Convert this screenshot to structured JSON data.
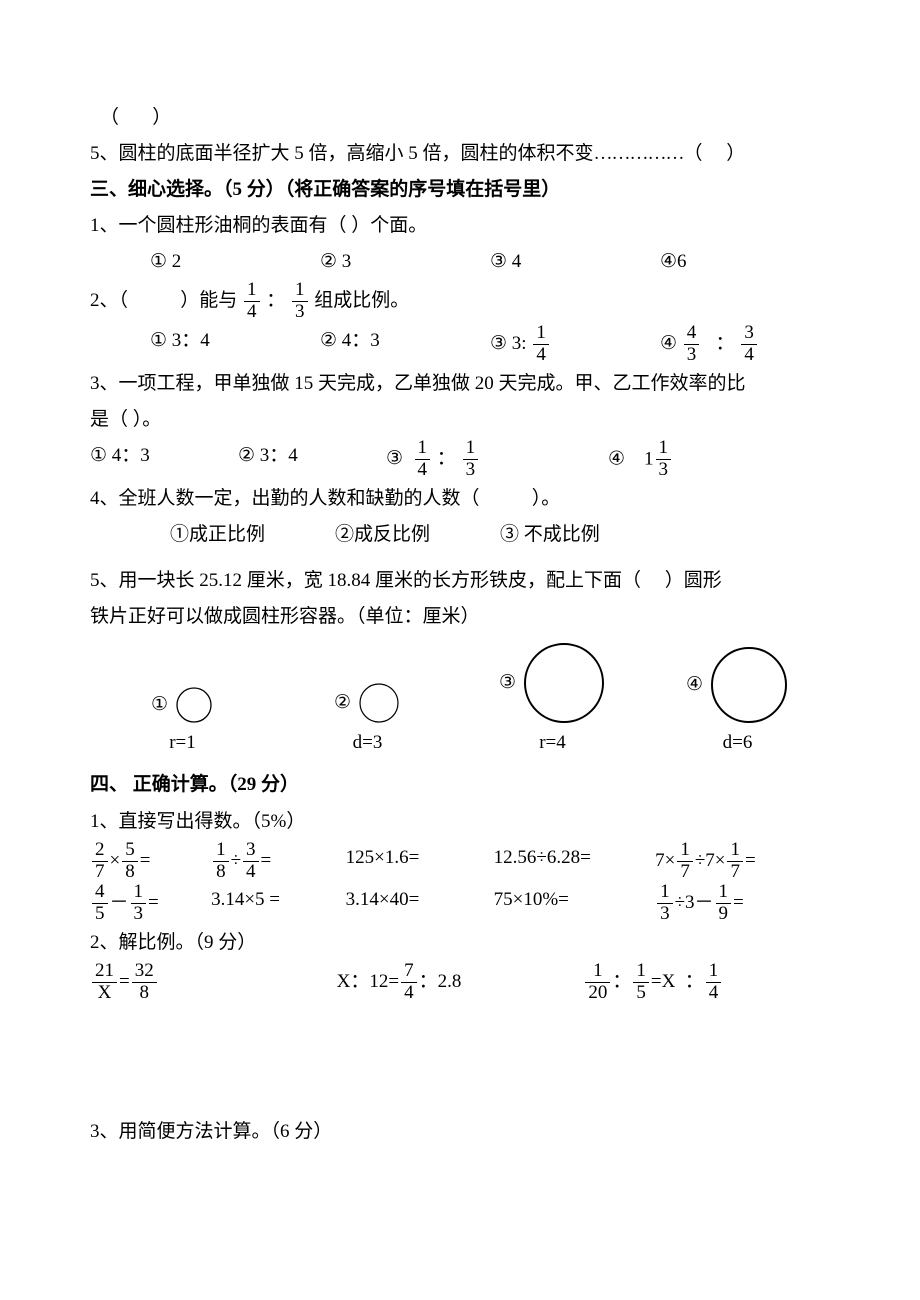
{
  "q_top_paren": "（       ）",
  "q_cylinder": {
    "num": "5",
    "text1": "、圆柱的底面半径扩大 5 倍，高缩小 5 倍，圆柱的体积不变",
    "dots": "……………",
    "paren": "（     ）"
  },
  "sec3": {
    "title": "三、细心选择。（5 分）（将正确答案的序号填在括号里）"
  },
  "q3_1": {
    "text": "1、一个圆柱形油桐的表面有（      ）个面。",
    "opts": [
      "①  2",
      "②  3",
      "③  4",
      "④6"
    ]
  },
  "q3_2": {
    "prefix": "2、（           ）能与",
    "f1n": "1",
    "f1d": "4",
    "colon": "：",
    "f2n": "1",
    "f2d": "3",
    "suffix": "组成比例。",
    "opt1": "①  3：4",
    "opt2": "②  4：3",
    "opt3_a": "③  3:",
    "opt3_fn": "1",
    "opt3_fd": "4",
    "opt4_a": "④",
    "opt4_f1n": "4",
    "opt4_f1d": "3",
    "opt4_sep": "  ：",
    "opt4_f2n": "3",
    "opt4_f2d": "4"
  },
  "q3_3": {
    "line1": "3、一项工程，甲单独做 15 天完成，乙单独做 20 天完成。甲、乙工作效率的比",
    "line2": "是（    ）。",
    "opt1": "①  4：3",
    "opt2": "②  3：4",
    "opt3_pre": "③",
    "opt3_f1n": "1",
    "opt3_f1d": "4",
    "opt3_col": " ：",
    "opt3_f2n": "1",
    "opt3_f2d": "3",
    "opt4_pre": "④    1",
    "opt4_fn": "1",
    "opt4_fd": "3"
  },
  "q3_4": {
    "text": "4、全班人数一定，出勤的人数和缺勤的人数（           ）。",
    "opts": [
      "①成正比例",
      "②成反比例",
      "③  不成比例"
    ]
  },
  "q3_5": {
    "line1": "5、用一块长 25.12 厘米，宽 18.84 厘米的长方形铁皮，配上下面（     ）圆形",
    "line2": "铁片正好可以做成圆柱形容器。（单位：厘米）",
    "circles": [
      {
        "num": "①",
        "label": "r=1",
        "r": 17,
        "stroke": 1.3
      },
      {
        "num": "②",
        "label": "d=3",
        "r": 19,
        "stroke": 1.2
      },
      {
        "num": "③",
        "label": "r=4",
        "r": 39,
        "stroke": 2.0
      },
      {
        "num": "④",
        "label": "d=6",
        "r": 37,
        "stroke": 2.0
      }
    ]
  },
  "sec4": {
    "title": "四、  正确计算。（29 分）"
  },
  "q4_1": {
    "header": "1、直接写出得数。（5%）",
    "row1": {
      "e1": {
        "f1n": "2",
        "f1d": "7",
        "op": "×",
        "f2n": "5",
        "f2d": "8",
        "eq": "="
      },
      "e2": {
        "f1n": "1",
        "f1d": "8",
        "op": "÷",
        "f2n": "3",
        "f2d": "4",
        "eq": "="
      },
      "e3": "125×1.6=",
      "e4": "12.56÷6.28=",
      "e5": {
        "a": "7×",
        "f1n": "1",
        "f1d": "7",
        "mid": "÷7×",
        "f2n": "1",
        "f2d": "7",
        "eq": "="
      }
    },
    "row2": {
      "e1": {
        "f1n": "4",
        "f1d": "5",
        "op": "－",
        "f2n": "1",
        "f2d": "3",
        "eq": "="
      },
      "e2": "3.14×5  =",
      "e3": "3.14×40=",
      "e4": "75×10%=",
      "e5": {
        "f1n": "1",
        "f1d": "3",
        "mid": "÷3－",
        "f2n": "1",
        "f2d": "9",
        "eq": "="
      }
    }
  },
  "q4_2": {
    "header": "2、解比例。（9 分）",
    "e1": {
      "f1n": "21",
      "f1d": "X",
      "eq": "=",
      "f2n": "32",
      "f2d": "8"
    },
    "e2": {
      "a": "X：12=",
      "fn": "7",
      "fd": "4",
      "b": "：2.8"
    },
    "e3": {
      "f1n": "1",
      "f1d": "20",
      "c1": "：",
      "f2n": "1",
      "f2d": "5",
      "mid": "=X  ：",
      "f3n": "1",
      "f3d": "4"
    }
  },
  "q4_3": {
    "header": "3、用简便方法计算。（6 分）"
  }
}
